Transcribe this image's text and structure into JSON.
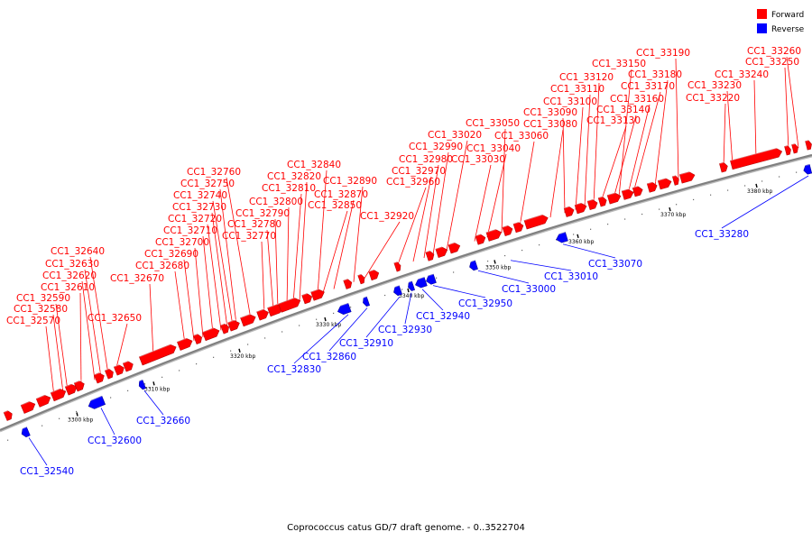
{
  "legend": {
    "forward_label": "Forward",
    "reverse_label": "Reverse",
    "forward_color": "#ff0000",
    "reverse_color": "#0000ff"
  },
  "caption": "Coprococcus catus GD/7 draft genome. - 0..3522704",
  "backbone_color": "#808080",
  "ticks": [
    "3300 kbp",
    "3310 kbp",
    "3320 kbp",
    "3330 kbp",
    "3340 kbp",
    "3350 kbp",
    "3360 kbp",
    "3370 kbp",
    "3380 kbp"
  ],
  "forward_genes": [
    "CC1_32570",
    "CC1_32580",
    "CC1_32590",
    "CC1_32610",
    "CC1_32620",
    "CC1_32630",
    "CC1_32640",
    "CC1_32650",
    "CC1_32670",
    "CC1_32680",
    "CC1_32690",
    "CC1_32700",
    "CC1_32710",
    "CC1_32720",
    "CC1_32730",
    "CC1_32740",
    "CC1_32750",
    "CC1_32760",
    "CC1_32770",
    "CC1_32780",
    "CC1_32790",
    "CC1_32800",
    "CC1_32810",
    "CC1_32820",
    "CC1_32840",
    "CC1_32850",
    "CC1_32870",
    "CC1_32890",
    "CC1_32920",
    "CC1_32960",
    "CC1_32970",
    "CC1_32980",
    "CC1_32990",
    "CC1_33020",
    "CC1_33030",
    "CC1_33040",
    "CC1_33050",
    "CC1_33060",
    "CC1_33080",
    "CC1_33090",
    "CC1_33100",
    "CC1_33110",
    "CC1_33120",
    "CC1_33130",
    "CC1_33140",
    "CC1_33150",
    "CC1_33160",
    "CC1_33170",
    "CC1_33180",
    "CC1_33190",
    "CC1_33220",
    "CC1_33230",
    "CC1_33240",
    "CC1_33250",
    "CC1_33260"
  ],
  "reverse_genes": [
    "CC1_32540",
    "CC1_32600",
    "CC1_32660",
    "CC1_32830",
    "CC1_32860",
    "CC1_32910",
    "CC1_32930",
    "CC1_32940",
    "CC1_32950",
    "CC1_33000",
    "CC1_33010",
    "CC1_33070",
    "CC1_33280"
  ]
}
